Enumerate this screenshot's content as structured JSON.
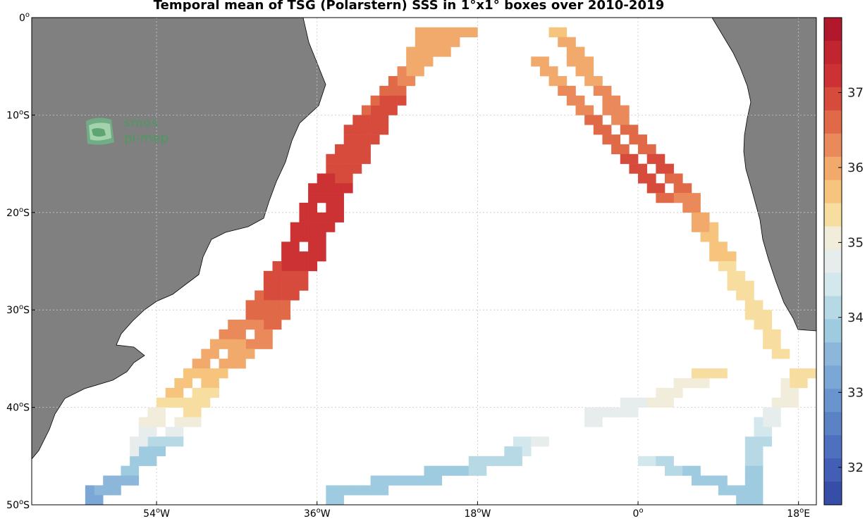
{
  "title": "Temporal mean of TSG (Polarstern) SSS in 1°x1° boxes over 2010-2019",
  "logo": {
    "line1": "smos",
    "line2": "pi-mep"
  },
  "x_ticks": [
    {
      "deg": "54",
      "hemi": "W"
    },
    {
      "deg": "36",
      "hemi": "W"
    },
    {
      "deg": "18",
      "hemi": "W"
    },
    {
      "deg": "0",
      "hemi": ""
    },
    {
      "deg": "18",
      "hemi": "E"
    }
  ],
  "y_ticks": [
    {
      "deg": "0",
      "hemi": ""
    },
    {
      "deg": "10",
      "hemi": "S"
    },
    {
      "deg": "20",
      "hemi": "S"
    },
    {
      "deg": "30",
      "hemi": "S"
    },
    {
      "deg": "40",
      "hemi": "S"
    },
    {
      "deg": "50",
      "hemi": "S"
    }
  ],
  "colorbar": {
    "labels": [
      "37",
      "36",
      "35",
      "34",
      "33",
      "32"
    ],
    "colors": [
      "#b2182b",
      "#c02530",
      "#cc3234",
      "#d74b3c",
      "#e06a48",
      "#ea8a5a",
      "#f2a96c",
      "#f6c47c",
      "#f7dea0",
      "#f2eddb",
      "#e7ecec",
      "#d2e8ed",
      "#b7d9e6",
      "#9fcbe1",
      "#8cb7db",
      "#7aa7d6",
      "#6994cd",
      "#5c82c6",
      "#4f70be",
      "#435fb5",
      "#374ea9"
    ]
  },
  "chart_data": {
    "type": "heatmap",
    "title": "Temporal mean of TSG (Polarstern) SSS in 1°x1° boxes over 2010-2019",
    "xlim": [
      -68,
      20
    ],
    "ylim": [
      -50,
      0
    ],
    "x_unit": "longitude (°)",
    "y_unit": "latitude (°)",
    "cell_size_deg": 1,
    "colorbar_range": [
      31.5,
      38
    ],
    "colorbar_ticks": [
      32,
      33,
      34,
      35,
      36,
      37
    ],
    "grid": true,
    "tracks": [
      {
        "name": "",
        "points": [
          [
            -24,
            -1,
            35.9
          ],
          [
            -26,
            -5,
            36.1
          ],
          [
            -28,
            -8,
            36.8
          ],
          [
            -30,
            -11,
            36.9
          ],
          [
            -32,
            -14,
            37.0
          ],
          [
            -34,
            -17,
            37.1
          ],
          [
            -35,
            -20,
            37.1
          ],
          [
            -37,
            -24,
            37.2
          ],
          [
            -39,
            -27,
            37.0
          ],
          [
            -41,
            -30,
            36.6
          ],
          [
            -43,
            -33,
            36.3
          ],
          [
            -46,
            -35,
            35.9
          ],
          [
            -49,
            -38,
            35.5
          ],
          [
            -51,
            -41,
            35.2
          ],
          [
            -53,
            -43,
            34.2
          ],
          [
            -56,
            -45,
            33.8
          ],
          [
            -58,
            -47,
            33.6
          ],
          [
            -60,
            -48,
            33.4
          ],
          [
            -62,
            -49,
            33.2
          ]
        ]
      },
      {
        "name": "",
        "points": [
          [
            -20,
            -1,
            36.0
          ],
          [
            -23,
            -3,
            36.0
          ],
          [
            -27,
            -6,
            36.4
          ],
          [
            -31,
            -10,
            36.8
          ],
          [
            -33,
            -13,
            37.0
          ],
          [
            -36,
            -17,
            37.1
          ],
          [
            -38,
            -21,
            37.2
          ],
          [
            -40,
            -25,
            37.1
          ],
          [
            -42,
            -28,
            36.8
          ],
          [
            -44,
            -31,
            36.4
          ],
          [
            -47,
            -33,
            36.1
          ],
          [
            -50,
            -36,
            35.8
          ],
          [
            -53,
            -39,
            35.5
          ],
          [
            -55,
            -41,
            35.0
          ],
          [
            -56,
            -43,
            34.8
          ],
          [
            -57,
            -45,
            34.6
          ]
        ]
      },
      {
        "name": "",
        "points": [
          [
            -10,
            -1,
            35.8
          ],
          [
            -8,
            -3,
            35.9
          ],
          [
            -6,
            -6,
            36.1
          ],
          [
            -4,
            -8,
            36.3
          ],
          [
            -2,
            -11,
            36.5
          ],
          [
            0,
            -13,
            36.7
          ],
          [
            2,
            -15,
            36.9
          ],
          [
            4,
            -17,
            36.5
          ],
          [
            6,
            -20,
            36.0
          ],
          [
            8,
            -23,
            35.7
          ],
          [
            10,
            -26,
            35.4
          ],
          [
            12,
            -29,
            35.3
          ],
          [
            14,
            -32,
            35.4
          ],
          [
            15,
            -34,
            35.5
          ]
        ]
      },
      {
        "name": "",
        "points": [
          [
            -12,
            -4,
            35.9
          ],
          [
            -9,
            -7,
            36.2
          ],
          [
            -6,
            -10,
            36.5
          ],
          [
            -3,
            -13,
            36.7
          ],
          [
            0,
            -16,
            36.9
          ],
          [
            2,
            -18,
            36.7
          ]
        ]
      },
      {
        "name": "",
        "points": [
          [
            18,
            -36,
            35.4
          ],
          [
            16,
            -39,
            35.0
          ],
          [
            14,
            -41,
            34.6
          ],
          [
            13,
            -43,
            34.2
          ],
          [
            12,
            -46,
            33.9
          ],
          [
            12,
            -49,
            33.7
          ]
        ]
      },
      {
        "name": "",
        "points": [
          [
            -35,
            -49,
            33.7
          ],
          [
            -30,
            -48,
            33.8
          ],
          [
            -24,
            -47,
            33.9
          ],
          [
            -19,
            -46,
            34.0
          ],
          [
            -15,
            -45,
            34.0
          ],
          [
            -12,
            -43,
            34.9
          ]
        ]
      },
      {
        "name": "",
        "points": [
          [
            -6,
            -41,
            34.6
          ],
          [
            -2,
            -40,
            34.8
          ],
          [
            2,
            -39,
            35.1
          ],
          [
            6,
            -37,
            35.2
          ],
          [
            8,
            -36,
            35.3
          ]
        ]
      },
      {
        "name": "",
        "points": [
          [
            0,
            -45,
            34.3
          ],
          [
            3,
            -46,
            34.0
          ],
          [
            6,
            -47,
            33.9
          ],
          [
            9,
            -48,
            33.8
          ],
          [
            11,
            -49,
            33.7
          ]
        ]
      }
    ]
  }
}
